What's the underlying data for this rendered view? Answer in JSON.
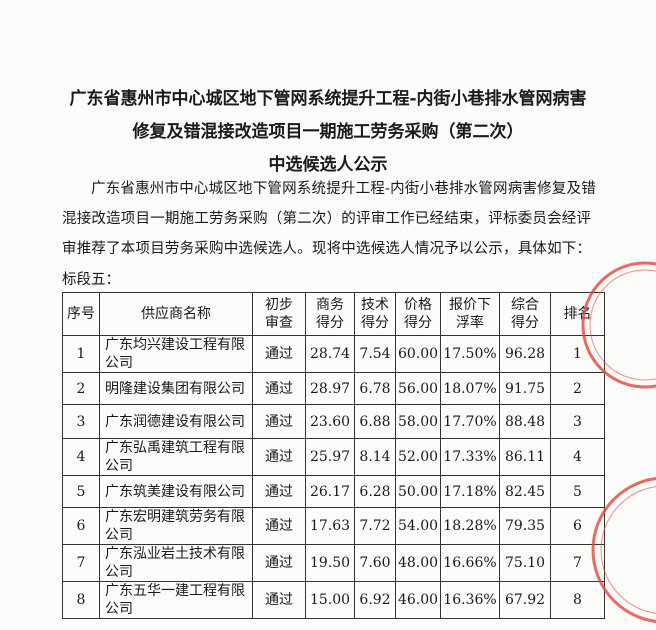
{
  "title_lines": [
    "广东省惠州市中心城区地下管网系统提升工程-内街小巷排水管网病害",
    "修复及错混接改造项目一期施工劳务采购（第二次）",
    "中选候选人公示"
  ],
  "paragraph": "广东省惠州市中心城区地下管网系统提升工程-内街小巷排水管网病害修复及错混接改造项目一期施工劳务采购（第二次）的评审工作已经结束，评标委员会经评审推荐了本项目劳务采购中选候选人。现将中选候选人情况予以公示，具体如下：",
  "section_label": "标段五：",
  "table": {
    "headers": [
      "序号",
      "供应商名称",
      "初步审查",
      "商务得分",
      "技术得分",
      "价格得分",
      "报价下浮率",
      "综合得分",
      "排名"
    ],
    "rows": [
      [
        "1",
        "广东均兴建设工程有限公司",
        "通过",
        "28.74",
        "7.54",
        "60.00",
        "17.50%",
        "96.28",
        "1"
      ],
      [
        "2",
        "明隆建设集团有限公司",
        "通过",
        "28.97",
        "6.78",
        "56.00",
        "18.07%",
        "91.75",
        "2"
      ],
      [
        "3",
        "广东润德建设有限公司",
        "通过",
        "23.60",
        "6.88",
        "58.00",
        "17.70%",
        "88.48",
        "3"
      ],
      [
        "4",
        "广东弘禹建筑工程有限公司",
        "通过",
        "25.97",
        "8.14",
        "52.00",
        "17.33%",
        "86.11",
        "4"
      ],
      [
        "5",
        "广东筑美建设有限公司",
        "通过",
        "26.17",
        "6.28",
        "50.00",
        "17.18%",
        "82.45",
        "5"
      ],
      [
        "6",
        "广东宏明建筑劳务有限公司",
        "通过",
        "17.63",
        "7.72",
        "54.00",
        "18.28%",
        "79.35",
        "6"
      ],
      [
        "7",
        "广东泓业岩土技术有限公司",
        "通过",
        "19.50",
        "7.60",
        "48.00",
        "16.66%",
        "75.10",
        "7"
      ],
      [
        "8",
        "广东五华一建工程有限公司",
        "通过",
        "15.00",
        "6.92",
        "46.00",
        "16.36%",
        "67.92",
        "8"
      ]
    ]
  },
  "stamp_color": "#e0473f"
}
